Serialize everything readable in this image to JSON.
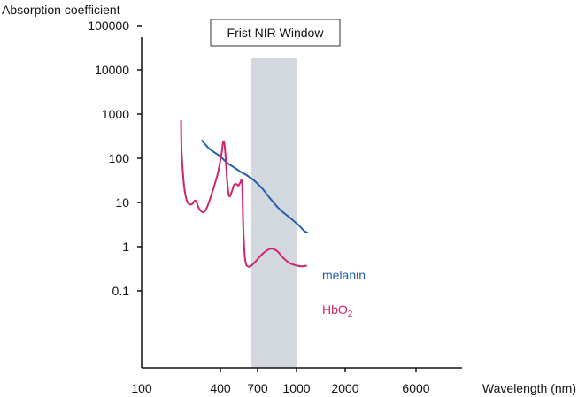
{
  "chart_data": {
    "type": "line",
    "title": "",
    "ylabel": "Absorption coefficient",
    "xlabel": "Wavelength (nm)",
    "y_scale": "log",
    "ylim": [
      0.03,
      1000000
    ],
    "y_ticks": [
      {
        "value": 0.1,
        "label": "0.1"
      },
      {
        "value": 1,
        "label": "1"
      },
      {
        "value": 10,
        "label": "10"
      },
      {
        "value": 100,
        "label": "100"
      },
      {
        "value": 1000,
        "label": "1000"
      },
      {
        "value": 10000,
        "label": "10000"
      },
      {
        "value": 100000,
        "label": "100000"
      }
    ],
    "x_ticks": [
      {
        "value": 100,
        "label": "100"
      },
      {
        "value": 400,
        "label": "400"
      },
      {
        "value": 700,
        "label": "700"
      },
      {
        "value": 1000,
        "label": "1000"
      },
      {
        "value": 2000,
        "label": "2000"
      },
      {
        "value": 6000,
        "label": "6000"
      }
    ],
    "grid": false,
    "shaded_region": {
      "label": "Frist NIR Window",
      "x_range": [
        650,
        1000
      ],
      "color": "#d3d8de"
    },
    "series": [
      {
        "name": "melanin",
        "label_text": "melanin",
        "color": "#1f5fab",
        "points": [
          [
            330,
            250
          ],
          [
            360,
            160
          ],
          [
            400,
            110
          ],
          [
            450,
            80
          ],
          [
            500,
            65
          ],
          [
            560,
            50
          ],
          [
            620,
            40
          ],
          [
            680,
            30
          ],
          [
            740,
            20
          ],
          [
            800,
            12
          ],
          [
            870,
            7
          ],
          [
            950,
            4.5
          ],
          [
            1050,
            3
          ],
          [
            1150,
            2.3
          ],
          [
            1220,
            2.1
          ]
        ]
      },
      {
        "name": "HbO2",
        "label_text": "HbO",
        "label_sub": "2",
        "color": "#d0246e",
        "points": [
          [
            250,
            700
          ],
          [
            252,
            150
          ],
          [
            258,
            40
          ],
          [
            265,
            17
          ],
          [
            275,
            10
          ],
          [
            290,
            9
          ],
          [
            305,
            11
          ],
          [
            320,
            7
          ],
          [
            335,
            6
          ],
          [
            350,
            8
          ],
          [
            370,
            18
          ],
          [
            390,
            45
          ],
          [
            410,
            130
          ],
          [
            420,
            220
          ],
          [
            430,
            230
          ],
          [
            440,
            130
          ],
          [
            455,
            30
          ],
          [
            470,
            14
          ],
          [
            490,
            17
          ],
          [
            510,
            25
          ],
          [
            530,
            26
          ],
          [
            545,
            24
          ],
          [
            560,
            28
          ],
          [
            575,
            27
          ],
          [
            585,
            2.5
          ],
          [
            600,
            0.5
          ],
          [
            630,
            0.35
          ],
          [
            680,
            0.45
          ],
          [
            740,
            0.7
          ],
          [
            800,
            0.9
          ],
          [
            850,
            0.8
          ],
          [
            900,
            0.55
          ],
          [
            950,
            0.42
          ],
          [
            1020,
            0.37
          ],
          [
            1100,
            0.36
          ],
          [
            1200,
            0.37
          ]
        ]
      }
    ]
  }
}
